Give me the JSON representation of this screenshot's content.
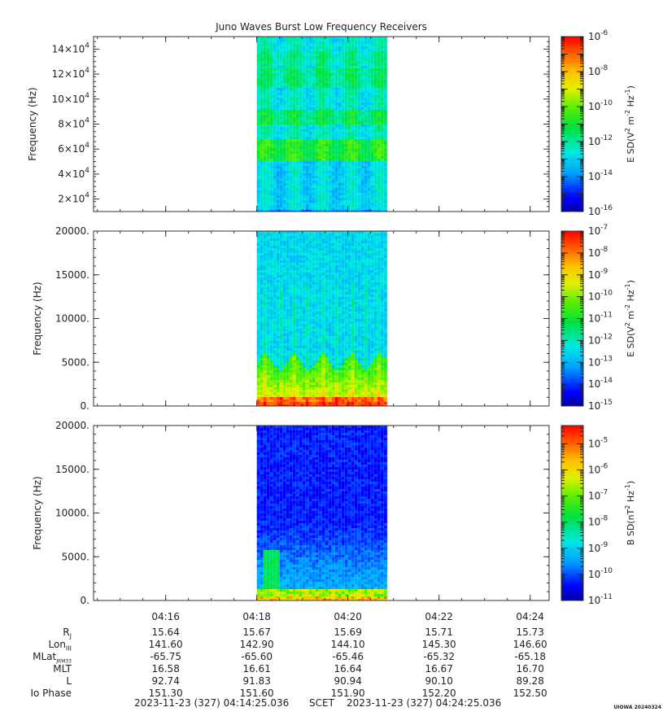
{
  "title": "Juno Waves Burst Low Frequency Receivers",
  "colors": {
    "axis": "#333333",
    "background": "#ffffff"
  },
  "chart_data": [
    {
      "type": "heatmap",
      "panel": "top",
      "receiver_band": "high frequency",
      "ylabel": "Frequency (Hz)",
      "ylim": [
        10000,
        150000
      ],
      "yticks": [
        20000,
        40000,
        60000,
        80000,
        100000,
        120000,
        140000
      ],
      "ytick_labels": [
        {
          "mant": "2×10",
          "exp": "4"
        },
        {
          "mant": "4×10",
          "exp": "4"
        },
        {
          "mant": "6×10",
          "exp": "4"
        },
        {
          "mant": "8×10",
          "exp": "4"
        },
        {
          "mant": "10×10",
          "exp": "4"
        },
        {
          "mant": "12×10",
          "exp": "4"
        },
        {
          "mant": "14×10",
          "exp": "4"
        }
      ],
      "data_time_range": [
        "04:18:00",
        "04:20:52"
      ],
      "colorbar": {
        "label_base": "E SD(V",
        "label_sup1": "2",
        "label_mid": " m",
        "label_sup2": "-2",
        "label_mid2": " Hz",
        "label_sup3": "-1",
        "label_end": ")",
        "scale": "log",
        "range_exp": [
          -16,
          -6
        ],
        "ticks": [
          {
            "exp": -6,
            "base": "10",
            "sup": "-6"
          },
          {
            "exp": -8,
            "base": "10",
            "sup": "-8"
          },
          {
            "exp": -10,
            "base": "10",
            "sup": "-10"
          },
          {
            "exp": -12,
            "base": "10",
            "sup": "-12"
          },
          {
            "exp": -14,
            "base": "10",
            "sup": "-14"
          },
          {
            "exp": -16,
            "base": "10",
            "sup": "-16"
          }
        ]
      }
    },
    {
      "type": "heatmap",
      "panel": "middle",
      "ylabel": "Frequency (Hz)",
      "ylim": [
        0,
        20000
      ],
      "yticks": [
        0,
        5000,
        10000,
        15000,
        20000
      ],
      "ytick_labels": [
        "0.",
        "5000.",
        "10000.",
        "15000.",
        "20000."
      ],
      "data_time_range": [
        "04:18:00",
        "04:20:52"
      ],
      "colorbar": {
        "label_base": "E SD(V",
        "label_sup1": "2",
        "label_mid": " m",
        "label_sup2": "-2",
        "label_mid2": " Hz",
        "label_sup3": "-1",
        "label_end": ")",
        "scale": "log",
        "range_exp": [
          -15,
          -7
        ],
        "ticks": [
          {
            "exp": -7,
            "base": "10",
            "sup": "-7"
          },
          {
            "exp": -8,
            "base": "10",
            "sup": "-8"
          },
          {
            "exp": -9,
            "base": "10",
            "sup": "-9"
          },
          {
            "exp": -10,
            "base": "10",
            "sup": "-10"
          },
          {
            "exp": -11,
            "base": "10",
            "sup": "-11"
          },
          {
            "exp": -12,
            "base": "10",
            "sup": "-12"
          },
          {
            "exp": -13,
            "base": "10",
            "sup": "-13"
          },
          {
            "exp": -14,
            "base": "10",
            "sup": "-14"
          },
          {
            "exp": -15,
            "base": "10",
            "sup": "-15"
          }
        ]
      }
    },
    {
      "type": "heatmap",
      "panel": "bottom",
      "ylabel": "Frequency (Hz)",
      "ylim": [
        0,
        20000
      ],
      "yticks": [
        0,
        5000,
        10000,
        15000,
        20000
      ],
      "ytick_labels": [
        "0.",
        "5000.",
        "10000.",
        "15000.",
        "20000."
      ],
      "data_time_range": [
        "04:18:00",
        "04:20:52"
      ],
      "colorbar": {
        "label_base": "B SD(nT",
        "label_sup1": "2",
        "label_mid": " Hz",
        "label_sup2": "-1",
        "label_mid2": "",
        "label_sup3": "",
        "label_end": ")",
        "scale": "log",
        "range_exp": [
          -11,
          -4.3
        ],
        "ticks": [
          {
            "exp": -5,
            "base": "10",
            "sup": "-5"
          },
          {
            "exp": -6,
            "base": "10",
            "sup": "-6"
          },
          {
            "exp": -7,
            "base": "10",
            "sup": "-7"
          },
          {
            "exp": -8,
            "base": "10",
            "sup": "-8"
          },
          {
            "exp": -9,
            "base": "10",
            "sup": "-9"
          },
          {
            "exp": -10,
            "base": "10",
            "sup": "-10"
          },
          {
            "exp": -11,
            "base": "10",
            "sup": "-11"
          }
        ]
      }
    }
  ],
  "time_axis": {
    "start": "04:14:25",
    "end": "04:24:25",
    "tick_labels": [
      "04:16",
      "04:18",
      "04:20",
      "04:22",
      "04:24"
    ]
  },
  "ephemeris": {
    "rows": [
      {
        "label": "R",
        "sub": "J",
        "values": [
          "15.64",
          "15.67",
          "15.69",
          "15.71",
          "15.73"
        ]
      },
      {
        "label": "Lon",
        "sub": "III",
        "values": [
          "141.60",
          "142.90",
          "144.10",
          "145.30",
          "146.60"
        ]
      },
      {
        "label": "MLat",
        "sub": "JRM33",
        "values": [
          "-65.75",
          "-65.60",
          "-65.46",
          "-65.32",
          "-65.18"
        ]
      },
      {
        "label": "MLT",
        "sub": "",
        "values": [
          "16.58",
          "16.61",
          "16.64",
          "16.67",
          "16.70"
        ]
      },
      {
        "label": "L",
        "sub": "",
        "values": [
          "92.74",
          "91.83",
          "90.94",
          "90.10",
          "89.28"
        ]
      },
      {
        "label": "Io Phase",
        "sub": "",
        "values": [
          "151.30",
          "151.60",
          "151.90",
          "152.20",
          "152.50"
        ]
      }
    ]
  },
  "footer": {
    "start": "2023-11-23 (327) 04:14:25.036",
    "scet": "SCET",
    "end": "2023-11-23 (327) 04:24:25.036"
  },
  "stamp": "UIOWA 20240324"
}
